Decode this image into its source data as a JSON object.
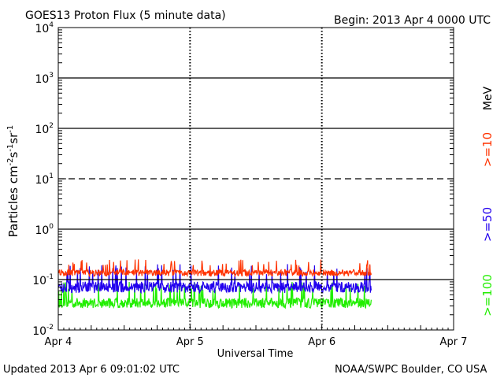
{
  "chart_data": {
    "type": "line",
    "title": "GOES13 Proton Flux (5 minute data)",
    "begin_label": "Begin: 2013 Apr 4 0000 UTC",
    "xlabel": "Universal Time",
    "ylabel": {
      "base": "Particles cm",
      "sup1": "-2",
      "mid1": "s",
      "sup2": "-1",
      "mid2": "sr",
      "sup3": "-1"
    },
    "y_scale": "log",
    "ylim_exp": [
      -2,
      4
    ],
    "y_ticks": [
      {
        "exp": "-2"
      },
      {
        "exp": "-1"
      },
      {
        "exp": "0"
      },
      {
        "exp": "1"
      },
      {
        "exp": "2"
      },
      {
        "exp": "3"
      },
      {
        "exp": "4"
      }
    ],
    "tick_base": "10",
    "xlim_hours": [
      0,
      72
    ],
    "x_ticks": [
      {
        "label": "Apr 4",
        "hour": 0
      },
      {
        "label": "Apr 5",
        "hour": 24
      },
      {
        "label": "Apr 6",
        "hour": 48
      },
      {
        "label": "Apr 7",
        "hour": 72
      }
    ],
    "data_end_hour": 57.0,
    "threshold_lines": [
      {
        "value": 10,
        "style": "dashed"
      },
      {
        "value": 100,
        "style": "solid"
      },
      {
        "value": 1000,
        "style": "solid"
      }
    ],
    "series": [
      {
        "name": ">=10",
        "color": "#ff3300",
        "baseline": 0.13,
        "spread": 0.13
      },
      {
        "name": ">=50",
        "color": "#2200ee",
        "baseline": 0.065,
        "spread": 0.22
      },
      {
        "name": ">=100",
        "color": "#22ee00",
        "baseline": 0.032,
        "spread": 0.2
      }
    ],
    "unit_label": "MeV",
    "updated": "Updated 2013 Apr  6 09:01:02 UTC",
    "credit": "NOAA/SWPC Boulder, CO USA"
  }
}
